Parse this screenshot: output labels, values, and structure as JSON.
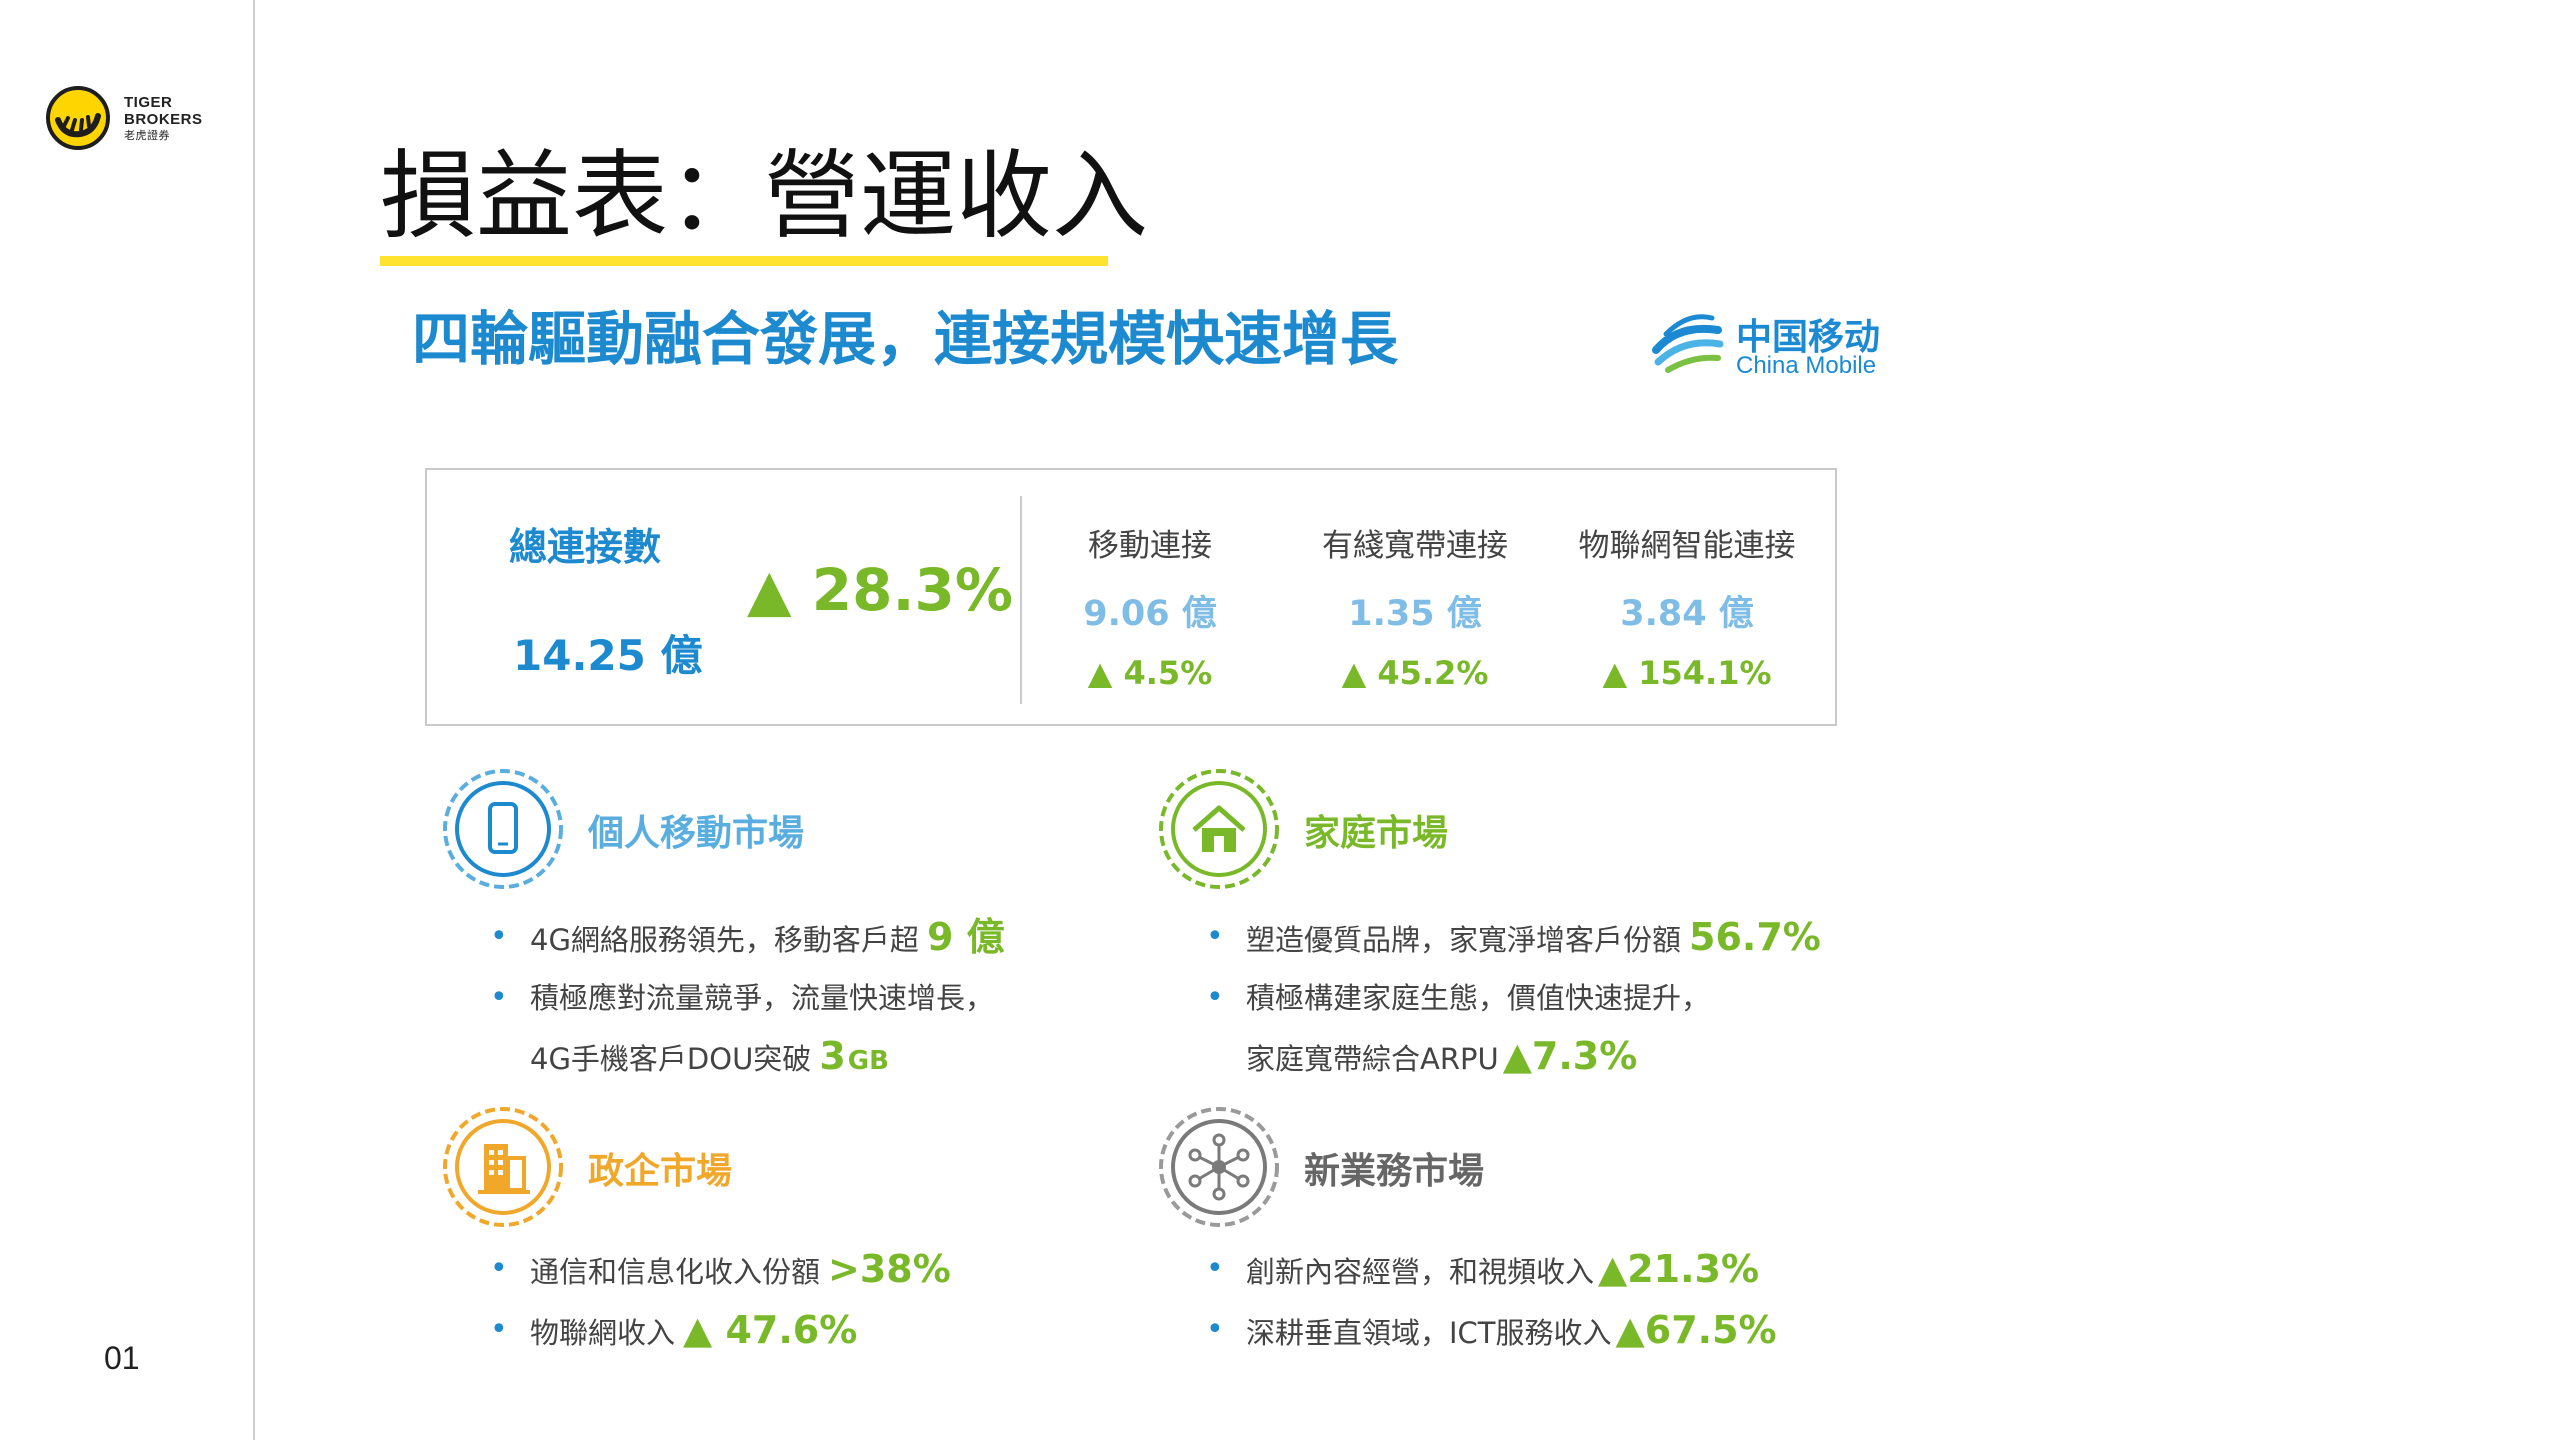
{
  "brand": {
    "logo_line1": "TIGER",
    "logo_line2": "BROKERS",
    "logo_line3": "老虎證券"
  },
  "page_number": "01",
  "title": "損益表：營運收入",
  "subtitle": "四輪驅動融合發展，連接規模快速增長",
  "china_mobile": {
    "cn": "中国移动",
    "en": "China Mobile"
  },
  "stats": {
    "total_label": "總連接數",
    "total_value": "14.25 億",
    "total_growth": "▲ 28.3%",
    "columns": [
      {
        "label": "移動連接",
        "value": "9.06 億",
        "growth": "▲ 4.5%"
      },
      {
        "label": "有綫寬帶連接",
        "value": "1.35 億",
        "growth": "▲ 45.2%"
      },
      {
        "label": "物聯網智能連接",
        "value": "3.84 億",
        "growth": "▲ 154.1%"
      }
    ]
  },
  "sections": {
    "personal": {
      "title": "個人移動市場",
      "b1_text": "4G網絡服務領先，移動客戶超",
      "b1_hl": "9 億",
      "b2_text": "積極應對流量競爭，流量快速增長，",
      "b3_text": "4G手機客戶DOU突破",
      "b3_hl": "3",
      "b3_unit": "GB"
    },
    "home": {
      "title": "家庭市場",
      "b1_text": "塑造優質品牌，家寬淨增客戶份額",
      "b1_hl": "56.7%",
      "b2_text": "積極構建家庭生態，價值快速提升，",
      "b3_text": "家庭寬帶綜合ARPU",
      "b3_hl": "▲7.3%"
    },
    "gov": {
      "title": "政企市場",
      "b1_text": "通信和信息化收入份額",
      "b1_hl": ">38%",
      "b2_text": "物聯網收入",
      "b2_hl": "▲ 47.6%"
    },
    "newbiz": {
      "title": "新業務市場",
      "b1_text": "創新內容經營，和視頻收入",
      "b1_hl": "▲21.3%",
      "b2_text": "深耕垂直領域，ICT服務收入",
      "b2_hl": "▲67.5%"
    }
  },
  "colors": {
    "blue": "#1d8ad0",
    "light_blue": "#7fbde6",
    "green": "#79b828",
    "orange": "#f0a72a",
    "gray": "#9a9a9a",
    "underline_yellow": "#ffe32e"
  },
  "icons": {
    "personal": "smartphone-icon",
    "home": "house-icon",
    "gov": "building-icon",
    "newbiz": "network-icon"
  }
}
